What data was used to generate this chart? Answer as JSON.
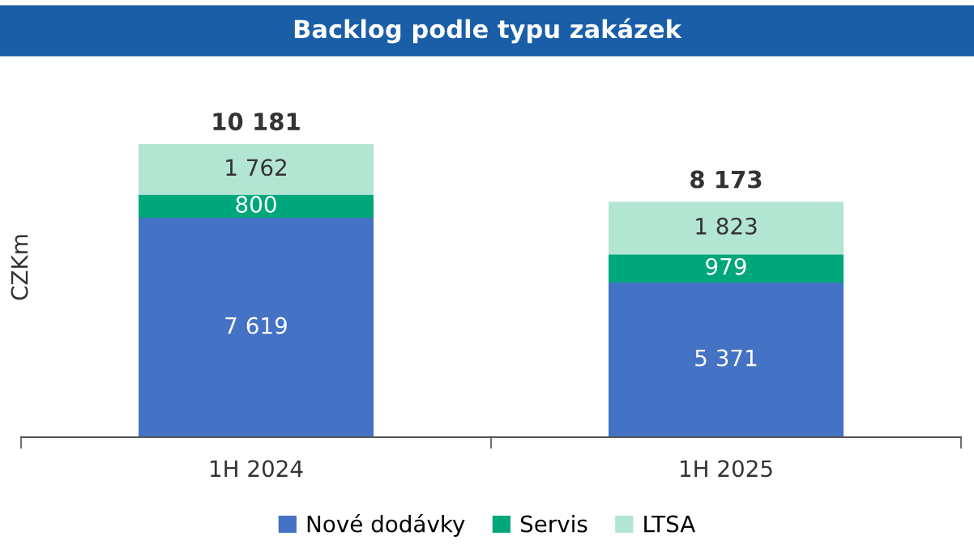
{
  "chart_data": {
    "type": "bar",
    "stacked": true,
    "title": "Backlog podle typu zakázek",
    "ylabel": "CZKm",
    "categories": [
      "1H 2024",
      "1H 2025"
    ],
    "series": [
      {
        "name": "Nové dodávky",
        "color": "#4472c4",
        "values": [
          7619,
          5371
        ],
        "value_labels": [
          "7 619",
          "5 371"
        ]
      },
      {
        "name": "Servis",
        "color": "#00a77a",
        "values": [
          800,
          979
        ],
        "value_labels": [
          "800",
          "979"
        ]
      },
      {
        "name": "LTSA",
        "color": "#b3e5d3",
        "values": [
          1762,
          1823
        ],
        "value_labels": [
          "1 762",
          "1 823"
        ]
      }
    ],
    "totals": [
      "10 181",
      "8 173"
    ],
    "legend": "bottom",
    "grid": false
  }
}
